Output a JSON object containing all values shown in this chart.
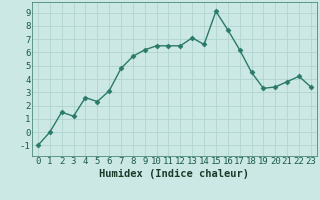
{
  "x": [
    0,
    1,
    2,
    3,
    4,
    5,
    6,
    7,
    8,
    9,
    10,
    11,
    12,
    13,
    14,
    15,
    16,
    17,
    18,
    19,
    20,
    21,
    22,
    23
  ],
  "y": [
    -1,
    0,
    1.5,
    1.2,
    2.6,
    2.3,
    3.1,
    4.8,
    5.7,
    6.2,
    6.5,
    6.5,
    6.5,
    7.1,
    6.6,
    9.1,
    7.7,
    6.2,
    4.5,
    3.3,
    3.4,
    3.8,
    4.2,
    3.4
  ],
  "line_color": "#2a7a6a",
  "marker": "D",
  "marker_size": 2.5,
  "bg_color": "#cce8e4",
  "grid_color": "#b0d4d0",
  "plot_bg": "#cce8e4",
  "xlabel": "Humidex (Indice chaleur)",
  "xlim": [
    -0.5,
    23.5
  ],
  "ylim": [
    -1.8,
    9.8
  ],
  "yticks": [
    -1,
    0,
    1,
    2,
    3,
    4,
    5,
    6,
    7,
    8,
    9
  ],
  "xticks": [
    0,
    1,
    2,
    3,
    4,
    5,
    6,
    7,
    8,
    9,
    10,
    11,
    12,
    13,
    14,
    15,
    16,
    17,
    18,
    19,
    20,
    21,
    22,
    23
  ],
  "xlabel_fontsize": 7.5,
  "tick_fontsize": 6.5,
  "line_width": 1.0
}
